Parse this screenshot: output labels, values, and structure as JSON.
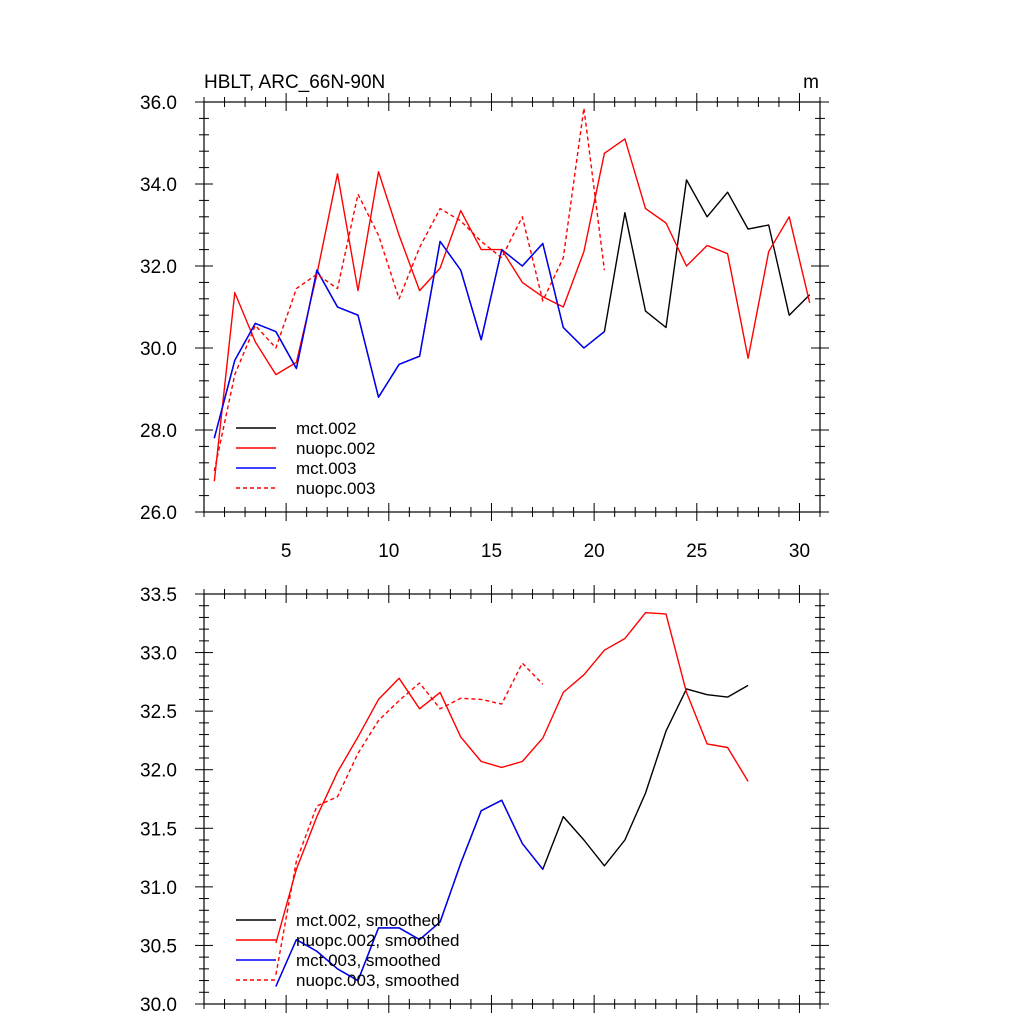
{
  "chart_data": [
    {
      "type": "line",
      "title": "HBLT, ARC_66N-90N",
      "units": "m",
      "xlim": [
        1,
        31
      ],
      "ylim": [
        26.0,
        36.0
      ],
      "xticks": [
        5,
        10,
        15,
        20,
        25,
        30
      ],
      "xtick_labels": [
        "5",
        "10",
        "15",
        "20",
        "25",
        "30"
      ],
      "yticks": [
        26.0,
        28.0,
        30.0,
        32.0,
        34.0,
        36.0
      ],
      "ytick_labels": [
        "26.0",
        "28.0",
        "30.0",
        "32.0",
        "34.0",
        "36.0"
      ],
      "legend_position": "bottom-left",
      "series": [
        {
          "name": "mct.002",
          "color": "#000000",
          "dash": false,
          "x": [
            1.5,
            2.5,
            3.5,
            4.5,
            5.5,
            6.5,
            7.5,
            8.5,
            9.5,
            10.5,
            11.5,
            12.5,
            13.5,
            14.5,
            15.5,
            16.5,
            17.5,
            18.5,
            19.5,
            20.5,
            21.5,
            22.5,
            23.5,
            24.5,
            25.5,
            26.5,
            27.5,
            28.5,
            29.5,
            30.5
          ],
          "y": [
            27.8,
            29.7,
            30.6,
            30.4,
            29.5,
            31.9,
            31.0,
            30.8,
            28.8,
            29.6,
            29.8,
            32.6,
            31.9,
            30.2,
            32.4,
            32.0,
            32.55,
            30.5,
            30.0,
            30.4,
            33.3,
            30.9,
            30.5,
            34.1,
            33.2,
            33.8,
            32.9,
            33.0,
            30.8,
            31.3
          ]
        },
        {
          "name": "nuopc.002",
          "color": "#ff0000",
          "dash": false,
          "x": [
            1.5,
            2.5,
            3.5,
            4.5,
            5.5,
            6.5,
            7.5,
            8.5,
            9.5,
            10.5,
            11.5,
            12.5,
            13.5,
            14.5,
            15.5,
            16.5,
            17.5,
            18.5,
            19.5,
            20.5,
            21.5,
            22.5,
            23.5,
            24.5,
            25.5,
            26.5,
            27.5,
            28.5,
            29.5,
            30.5
          ],
          "y": [
            26.75,
            31.35,
            30.15,
            29.35,
            29.65,
            31.8,
            34.25,
            31.4,
            34.3,
            32.75,
            31.4,
            31.95,
            33.35,
            32.4,
            32.4,
            31.6,
            31.25,
            31.0,
            32.35,
            34.75,
            35.1,
            33.4,
            33.05,
            32.0,
            32.5,
            32.3,
            29.75,
            32.35,
            33.2,
            31.1
          ]
        },
        {
          "name": "mct.003",
          "color": "#0000ff",
          "dash": false,
          "x": [
            1.5,
            2.5,
            3.5,
            4.5,
            5.5,
            6.5,
            7.5,
            8.5,
            9.5,
            10.5,
            11.5,
            12.5,
            13.5,
            14.5,
            15.5,
            16.5,
            17.5,
            18.5,
            19.5,
            20.5
          ],
          "y": [
            27.8,
            29.7,
            30.6,
            30.4,
            29.5,
            31.9,
            31.0,
            30.8,
            28.8,
            29.6,
            29.8,
            32.6,
            31.9,
            30.2,
            32.4,
            32.0,
            32.55,
            30.5,
            30.0,
            30.4
          ]
        },
        {
          "name": "nuopc.003",
          "color": "#ff0000",
          "dash": true,
          "x": [
            1.5,
            2.5,
            3.5,
            4.5,
            5.5,
            6.5,
            7.5,
            8.5,
            9.5,
            10.5,
            11.5,
            12.5,
            13.5,
            14.5,
            15.5,
            16.5,
            17.5,
            18.5,
            19.5,
            20.5
          ],
          "y": [
            27.0,
            29.35,
            30.55,
            30.0,
            31.45,
            31.8,
            31.45,
            33.75,
            32.75,
            31.2,
            32.45,
            33.4,
            33.1,
            32.6,
            32.2,
            33.2,
            31.15,
            32.2,
            35.85,
            31.9
          ]
        }
      ]
    },
    {
      "type": "line",
      "title": "",
      "xlim": [
        1,
        31
      ],
      "ylim": [
        30.0,
        33.5
      ],
      "xticks": [
        5,
        10,
        15,
        20,
        25,
        30
      ],
      "xtick_labels": [],
      "yticks": [
        30.0,
        30.5,
        31.0,
        31.5,
        32.0,
        32.5,
        33.0,
        33.5
      ],
      "ytick_labels": [
        "30.0",
        "30.5",
        "31.0",
        "31.5",
        "32.0",
        "32.5",
        "33.0",
        "33.5"
      ],
      "legend_position": "bottom-left",
      "series": [
        {
          "name": "mct.002, smoothed",
          "color": "#000000",
          "dash": false,
          "x": [
            4.5,
            5.5,
            6.5,
            7.5,
            8.5,
            9.5,
            10.5,
            11.5,
            12.5,
            13.5,
            14.5,
            15.5,
            16.5,
            17.5,
            18.5,
            19.5,
            20.5,
            21.5,
            22.5,
            23.5,
            24.5,
            25.5,
            26.5,
            27.5
          ],
          "y": [
            30.15,
            30.55,
            30.45,
            30.3,
            30.2,
            30.65,
            30.65,
            30.55,
            30.7,
            31.2,
            31.65,
            31.74,
            31.37,
            31.15,
            31.6,
            31.4,
            31.18,
            31.4,
            31.8,
            32.33,
            32.69,
            32.64,
            32.62,
            32.72
          ]
        },
        {
          "name": "nuopc.002, smoothed",
          "color": "#ff0000",
          "dash": false,
          "x": [
            4.5,
            5.5,
            6.5,
            7.5,
            8.5,
            9.5,
            10.5,
            11.5,
            12.5,
            13.5,
            14.5,
            15.5,
            16.5,
            17.5,
            18.5,
            19.5,
            20.5,
            21.5,
            22.5,
            23.5,
            24.5,
            25.5,
            26.5,
            27.5
          ],
          "y": [
            30.52,
            31.15,
            31.6,
            31.98,
            32.28,
            32.6,
            32.78,
            32.52,
            32.66,
            32.28,
            32.07,
            32.02,
            32.07,
            32.27,
            32.66,
            32.81,
            33.02,
            33.12,
            33.34,
            33.33,
            32.66,
            32.22,
            32.19,
            31.9
          ]
        },
        {
          "name": "mct.003, smoothed",
          "color": "#0000ff",
          "dash": false,
          "x": [
            4.5,
            5.5,
            6.5,
            7.5,
            8.5,
            9.5,
            10.5,
            11.5,
            12.5,
            13.5,
            14.5,
            15.5,
            16.5,
            17.5
          ],
          "y": [
            30.15,
            30.55,
            30.45,
            30.3,
            30.2,
            30.65,
            30.65,
            30.55,
            30.7,
            31.2,
            31.65,
            31.74,
            31.37,
            31.15
          ]
        },
        {
          "name": "nuopc.003, smoothed",
          "color": "#ff0000",
          "dash": true,
          "x": [
            4.5,
            5.5,
            6.5,
            7.5,
            8.5,
            9.5,
            10.5,
            11.5,
            12.5,
            13.5,
            14.5,
            15.5,
            16.5,
            17.5
          ],
          "y": [
            30.25,
            31.22,
            31.69,
            31.77,
            32.14,
            32.42,
            32.59,
            32.74,
            32.52,
            32.61,
            32.6,
            32.56,
            32.91,
            32.73
          ]
        }
      ]
    }
  ]
}
